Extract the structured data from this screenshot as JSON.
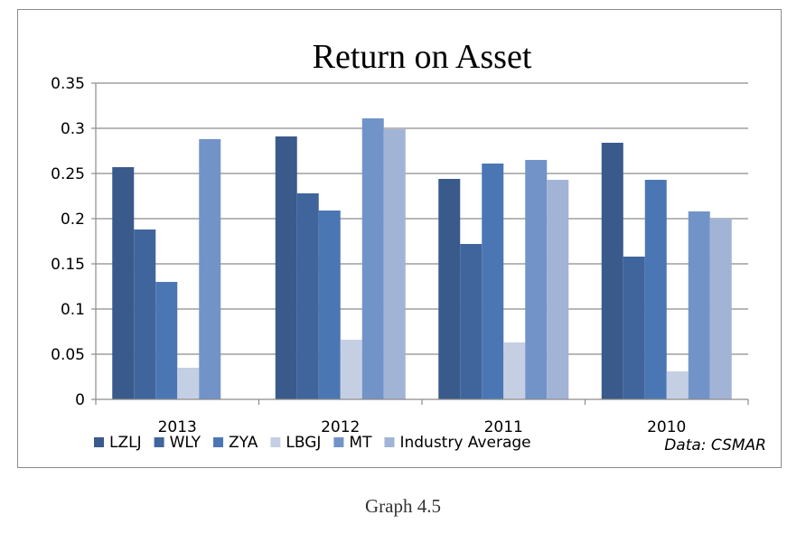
{
  "caption": "Graph 4.5",
  "chart_data": {
    "type": "bar",
    "title": "Return on Asset",
    "categories": [
      "2013",
      "2012",
      "2011",
      "2010"
    ],
    "series": [
      {
        "name": "LZLJ",
        "color": "#3a5a8c",
        "values": [
          0.257,
          0.291,
          0.244,
          0.284
        ]
      },
      {
        "name": "WLY",
        "color": "#40659c",
        "values": [
          0.188,
          0.228,
          0.172,
          0.158
        ]
      },
      {
        "name": "ZYA",
        "color": "#4a77b4",
        "values": [
          0.13,
          0.209,
          0.261,
          0.243
        ]
      },
      {
        "name": "LBGJ",
        "color": "#c5cfe3",
        "values": [
          0.035,
          0.066,
          0.063,
          0.031
        ]
      },
      {
        "name": "MT",
        "color": "#7293c8",
        "values": [
          0.288,
          0.311,
          0.265,
          0.208
        ]
      },
      {
        "name": "Industry Average",
        "color": "#a2b4d6",
        "values": [
          null,
          0.299,
          0.243,
          0.2
        ]
      }
    ],
    "ylim": [
      0,
      0.35
    ],
    "yticks": [
      "0",
      "0.05",
      "0.1",
      "0.15",
      "0.2",
      "0.25",
      "0.3",
      "0.35"
    ],
    "grid": true,
    "legend_position": "bottom",
    "source_note": "Data:  CSMAR"
  }
}
